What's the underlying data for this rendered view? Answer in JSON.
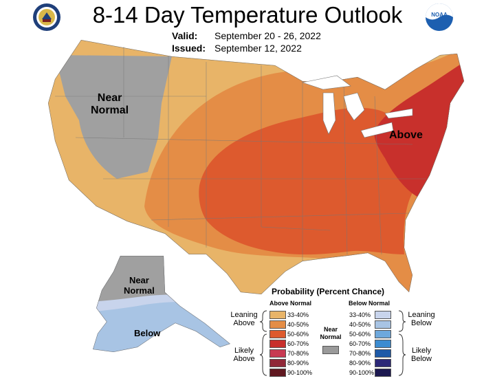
{
  "header": {
    "title": "8-14 Day Temperature Outlook",
    "valid_label": "Valid:",
    "valid_value": "September 20 - 26, 2022",
    "issued_label": "Issued:",
    "issued_value": "September 12, 2022",
    "left_logo": "doc-seal-icon",
    "right_logo": "noaa-logo-icon",
    "right_logo_text": "NOAA"
  },
  "map": {
    "labels": {
      "near_normal_conus": "Near\nNormal",
      "above": "Above",
      "near_normal_alaska": "Near\nNormal",
      "below": "Below"
    },
    "colors": {
      "near_normal": "#a0a0a0",
      "above_33_40": "#e8b468",
      "above_40_50": "#e48d46",
      "above_50_60": "#dd5a2e",
      "above_60_70": "#c8302c",
      "below_33_40": "#c8d4ec",
      "below_40_50": "#a8c4e4"
    }
  },
  "legend": {
    "title": "Probability (Percent Chance)",
    "above_header": "Above Normal",
    "below_header": "Below Normal",
    "near_normal_label": "Near\nNormal",
    "near_normal_color": "#9a9a9a",
    "leaning_above": "Leaning\nAbove",
    "likely_above": "Likely\nAbove",
    "leaning_below": "Leaning\nBelow",
    "likely_below": "Likely\nBelow",
    "above": [
      {
        "range": "33-40%",
        "color": "#e8b468"
      },
      {
        "range": "40-50%",
        "color": "#e48d46"
      },
      {
        "range": "50-60%",
        "color": "#dd5a2e"
      },
      {
        "range": "60-70%",
        "color": "#c8302c"
      },
      {
        "range": "70-80%",
        "color": "#c83a52"
      },
      {
        "range": "80-90%",
        "color": "#902838"
      },
      {
        "range": "90-100%",
        "color": "#601820"
      }
    ],
    "below": [
      {
        "range": "33-40%",
        "color": "#c8d4ec"
      },
      {
        "range": "40-50%",
        "color": "#a8c4e4"
      },
      {
        "range": "50-60%",
        "color": "#6ea8dc"
      },
      {
        "range": "60-70%",
        "color": "#3c8cd0"
      },
      {
        "range": "70-80%",
        "color": "#1e5aa8"
      },
      {
        "range": "80-90%",
        "color": "#2c2878"
      },
      {
        "range": "90-100%",
        "color": "#1c1850"
      }
    ]
  }
}
